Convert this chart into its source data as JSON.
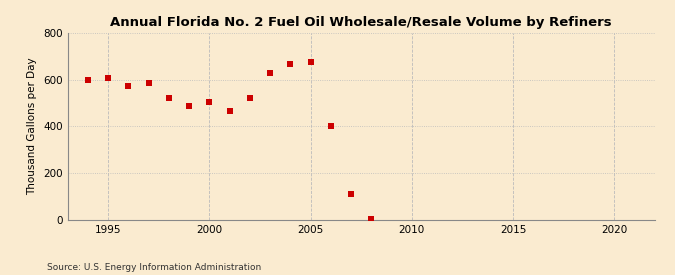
{
  "title": "Annual Florida No. 2 Fuel Oil Wholesale/Resale Volume by Refiners",
  "ylabel": "Thousand Gallons per Day",
  "source": "Source: U.S. Energy Information Administration",
  "years": [
    1994,
    1995,
    1996,
    1997,
    1998,
    1999,
    2000,
    2001,
    2002,
    2003,
    2004,
    2005,
    2006,
    2007,
    2008
  ],
  "values": [
    600,
    607,
    572,
    588,
    523,
    487,
    503,
    468,
    520,
    627,
    667,
    675,
    400,
    110,
    5
  ],
  "xlim": [
    1993,
    2022
  ],
  "ylim": [
    0,
    800
  ],
  "yticks": [
    0,
    200,
    400,
    600,
    800
  ],
  "xticks": [
    1995,
    2000,
    2005,
    2010,
    2015,
    2020
  ],
  "marker_color": "#cc0000",
  "marker": "s",
  "marker_size": 4,
  "bg_color": "#faebd0",
  "grid_color": "#bbbbbb",
  "title_fontsize": 9.5,
  "label_fontsize": 7.5,
  "tick_fontsize": 7.5,
  "source_fontsize": 6.5
}
